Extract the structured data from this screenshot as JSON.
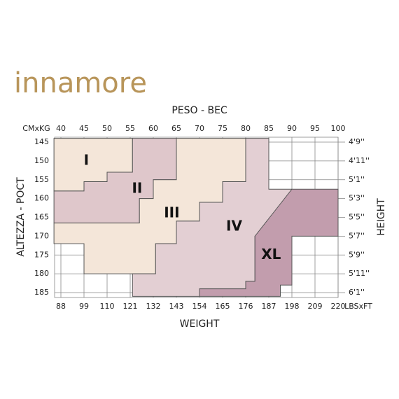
{
  "brand": "innamore",
  "chart_data": {
    "type": "size-chart",
    "title": "PESO - BEC",
    "x_unit_label": "CMxKG",
    "x2_unit_label": "LBSxFT",
    "xlabel": "WEIGHT",
    "ylabel": "ALTEZZA - POCT",
    "y2label": "HEIGHT",
    "xlim": [
      40,
      100
    ],
    "xticks": [
      40,
      45,
      50,
      55,
      60,
      65,
      70,
      75,
      80,
      85,
      90,
      95,
      100
    ],
    "x2lim": [
      88,
      220
    ],
    "x2ticks": [
      88,
      99,
      110,
      121,
      132,
      143,
      154,
      165,
      176,
      187,
      198,
      209,
      220
    ],
    "ylim": [
      145,
      185
    ],
    "yticks": [
      145,
      150,
      155,
      160,
      165,
      170,
      175,
      180,
      185
    ],
    "y2ticks": [
      {
        "value": 145,
        "label": "4'9''"
      },
      {
        "value": 150,
        "label": "4'11''"
      },
      {
        "value": 155,
        "label": "5'1''"
      },
      {
        "value": 160,
        "label": "5'3''"
      },
      {
        "value": 165,
        "label": "5'5''"
      },
      {
        "value": 170,
        "label": "5'7''"
      },
      {
        "value": 175,
        "label": "5'9''"
      },
      {
        "value": 180,
        "label": "5'11''"
      },
      {
        "value": 185,
        "label": "6'1''"
      }
    ],
    "grid": true,
    "sizes": [
      {
        "name": "I",
        "color": "#f4e6d9",
        "polygon": [
          [
            38.5,
            144
          ],
          [
            55.5,
            144
          ],
          [
            55.5,
            153
          ],
          [
            50,
            153
          ],
          [
            50,
            155.5
          ],
          [
            45,
            155.5
          ],
          [
            45,
            158
          ],
          [
            38.5,
            158
          ]
        ]
      },
      {
        "name": "II",
        "color": "#dfc7cb",
        "polygon": [
          [
            55.5,
            144
          ],
          [
            65,
            144
          ],
          [
            65,
            155
          ],
          [
            60,
            155
          ],
          [
            60,
            160
          ],
          [
            57,
            160
          ],
          [
            57,
            166.5
          ],
          [
            38.5,
            166.5
          ],
          [
            38.5,
            158
          ],
          [
            45,
            158
          ],
          [
            45,
            155.5
          ],
          [
            50,
            155.5
          ],
          [
            50,
            153
          ],
          [
            55.5,
            153
          ]
        ]
      },
      {
        "name": "III",
        "color": "#f4e6d9",
        "polygon": [
          [
            65,
            144
          ],
          [
            80,
            144
          ],
          [
            80,
            155.5
          ],
          [
            75,
            155.5
          ],
          [
            75,
            161
          ],
          [
            70,
            161
          ],
          [
            70,
            166
          ],
          [
            65,
            166
          ],
          [
            65,
            172
          ],
          [
            60.5,
            172
          ],
          [
            60.5,
            180
          ],
          [
            45,
            180
          ],
          [
            45,
            172
          ],
          [
            38.5,
            172
          ],
          [
            38.5,
            166.5
          ],
          [
            57,
            166.5
          ],
          [
            57,
            160
          ],
          [
            60,
            160
          ],
          [
            60,
            155
          ],
          [
            65,
            155
          ]
        ]
      },
      {
        "name": "IV",
        "color": "#e3cfd3",
        "polygon": [
          [
            80,
            144
          ],
          [
            85,
            144
          ],
          [
            85,
            157.5
          ],
          [
            90,
            157.5
          ],
          [
            90,
            170
          ],
          [
            82,
            170
          ],
          [
            82,
            182
          ],
          [
            80,
            182
          ],
          [
            80,
            184
          ],
          [
            70,
            184
          ],
          [
            70,
            186
          ],
          [
            55.5,
            186
          ],
          [
            55.5,
            180
          ],
          [
            60.5,
            180
          ],
          [
            60.5,
            172
          ],
          [
            65,
            172
          ],
          [
            65,
            166
          ],
          [
            70,
            166
          ],
          [
            70,
            161
          ],
          [
            75,
            161
          ],
          [
            75,
            155.5
          ],
          [
            80,
            155.5
          ]
        ]
      },
      {
        "name": "XL",
        "color": "#c29dad",
        "polygon": [
          [
            90,
            157.5
          ],
          [
            100,
            157.5
          ],
          [
            100,
            170
          ],
          [
            90,
            170
          ],
          [
            90,
            183
          ],
          [
            87.5,
            183
          ],
          [
            87.5,
            186
          ],
          [
            70,
            186
          ],
          [
            70,
            184
          ],
          [
            80,
            184
          ],
          [
            80,
            182
          ],
          [
            82,
            182
          ],
          [
            82,
            170
          ]
        ]
      }
    ]
  }
}
